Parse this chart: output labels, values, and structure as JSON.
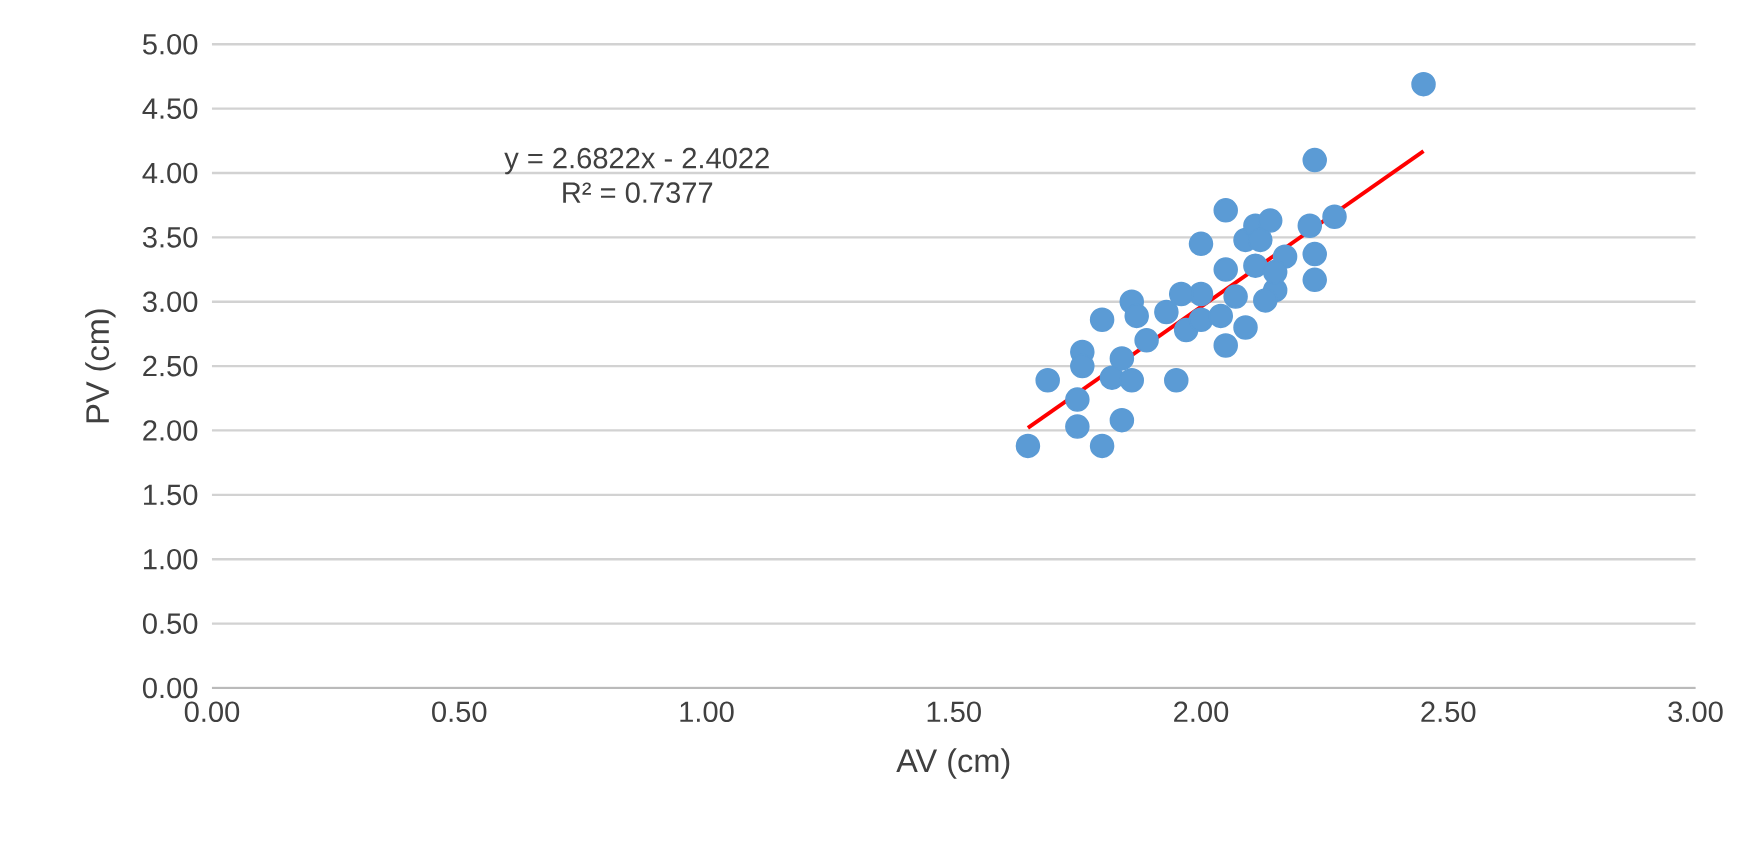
{
  "chart_data": {
    "type": "scatter",
    "xlabel": "AV (cm)",
    "ylabel": "PV (cm)",
    "xlim": [
      0,
      3
    ],
    "ylim": [
      0,
      5
    ],
    "xticks": [
      {
        "value": 0,
        "label": "0.00"
      },
      {
        "value": 0.5,
        "label": "0.50"
      },
      {
        "value": 1,
        "label": "1.00"
      },
      {
        "value": 1.5,
        "label": "1.50"
      },
      {
        "value": 2,
        "label": "2.00"
      },
      {
        "value": 2.5,
        "label": "2.50"
      },
      {
        "value": 3,
        "label": "3.00"
      }
    ],
    "yticks": [
      {
        "value": 0,
        "label": "0.00"
      },
      {
        "value": 0.5,
        "label": "0.50"
      },
      {
        "value": 1,
        "label": "1.00"
      },
      {
        "value": 1.5,
        "label": "1.50"
      },
      {
        "value": 2,
        "label": "2.00"
      },
      {
        "value": 2.5,
        "label": "2.50"
      },
      {
        "value": 3,
        "label": "3.00"
      },
      {
        "value": 3.5,
        "label": "3.50"
      },
      {
        "value": 4,
        "label": "4.00"
      },
      {
        "value": 4.5,
        "label": "4.50"
      },
      {
        "value": 5,
        "label": "5.00"
      }
    ],
    "grid": "y",
    "marker": "circle",
    "annotations": [
      "y = 2.6822x - 2.4022",
      "R² = 0.7377"
    ],
    "series": [
      {
        "color": "#5b9bd5",
        "x": [
          1.65,
          1.69,
          1.76,
          1.76,
          1.75,
          1.75,
          1.8,
          1.8,
          1.82,
          1.84,
          1.84,
          1.86,
          1.86,
          1.87,
          1.97,
          2.0,
          2.0,
          2.0,
          2.04,
          2.05,
          2.05,
          2.05,
          2.07,
          2.09,
          2.09,
          2.11,
          2.12,
          2.14,
          2.11,
          2.15,
          2.17,
          2.22,
          2.23,
          2.23,
          2.23,
          2.27,
          2.45,
          1.89,
          1.96,
          1.95,
          2.13,
          2.15,
          1.93
        ],
        "values": [
          1.88,
          2.39,
          2.61,
          2.5,
          2.24,
          2.03,
          1.88,
          2.86,
          2.41,
          2.56,
          2.08,
          2.39,
          3.0,
          2.89,
          2.78,
          3.06,
          2.86,
          3.45,
          2.89,
          3.71,
          2.66,
          3.25,
          3.04,
          2.8,
          3.48,
          3.59,
          3.48,
          3.63,
          3.28,
          3.09,
          3.35,
          3.59,
          4.1,
          3.37,
          3.17,
          3.66,
          4.69,
          2.7,
          3.06,
          2.39,
          3.01,
          3.23,
          2.92
        ]
      },
      {
        "type": "line",
        "color": "#ff0000",
        "marker": "none",
        "x": [
          1.65,
          2.45
        ],
        "values": [
          2.02,
          4.17
        ]
      }
    ]
  }
}
